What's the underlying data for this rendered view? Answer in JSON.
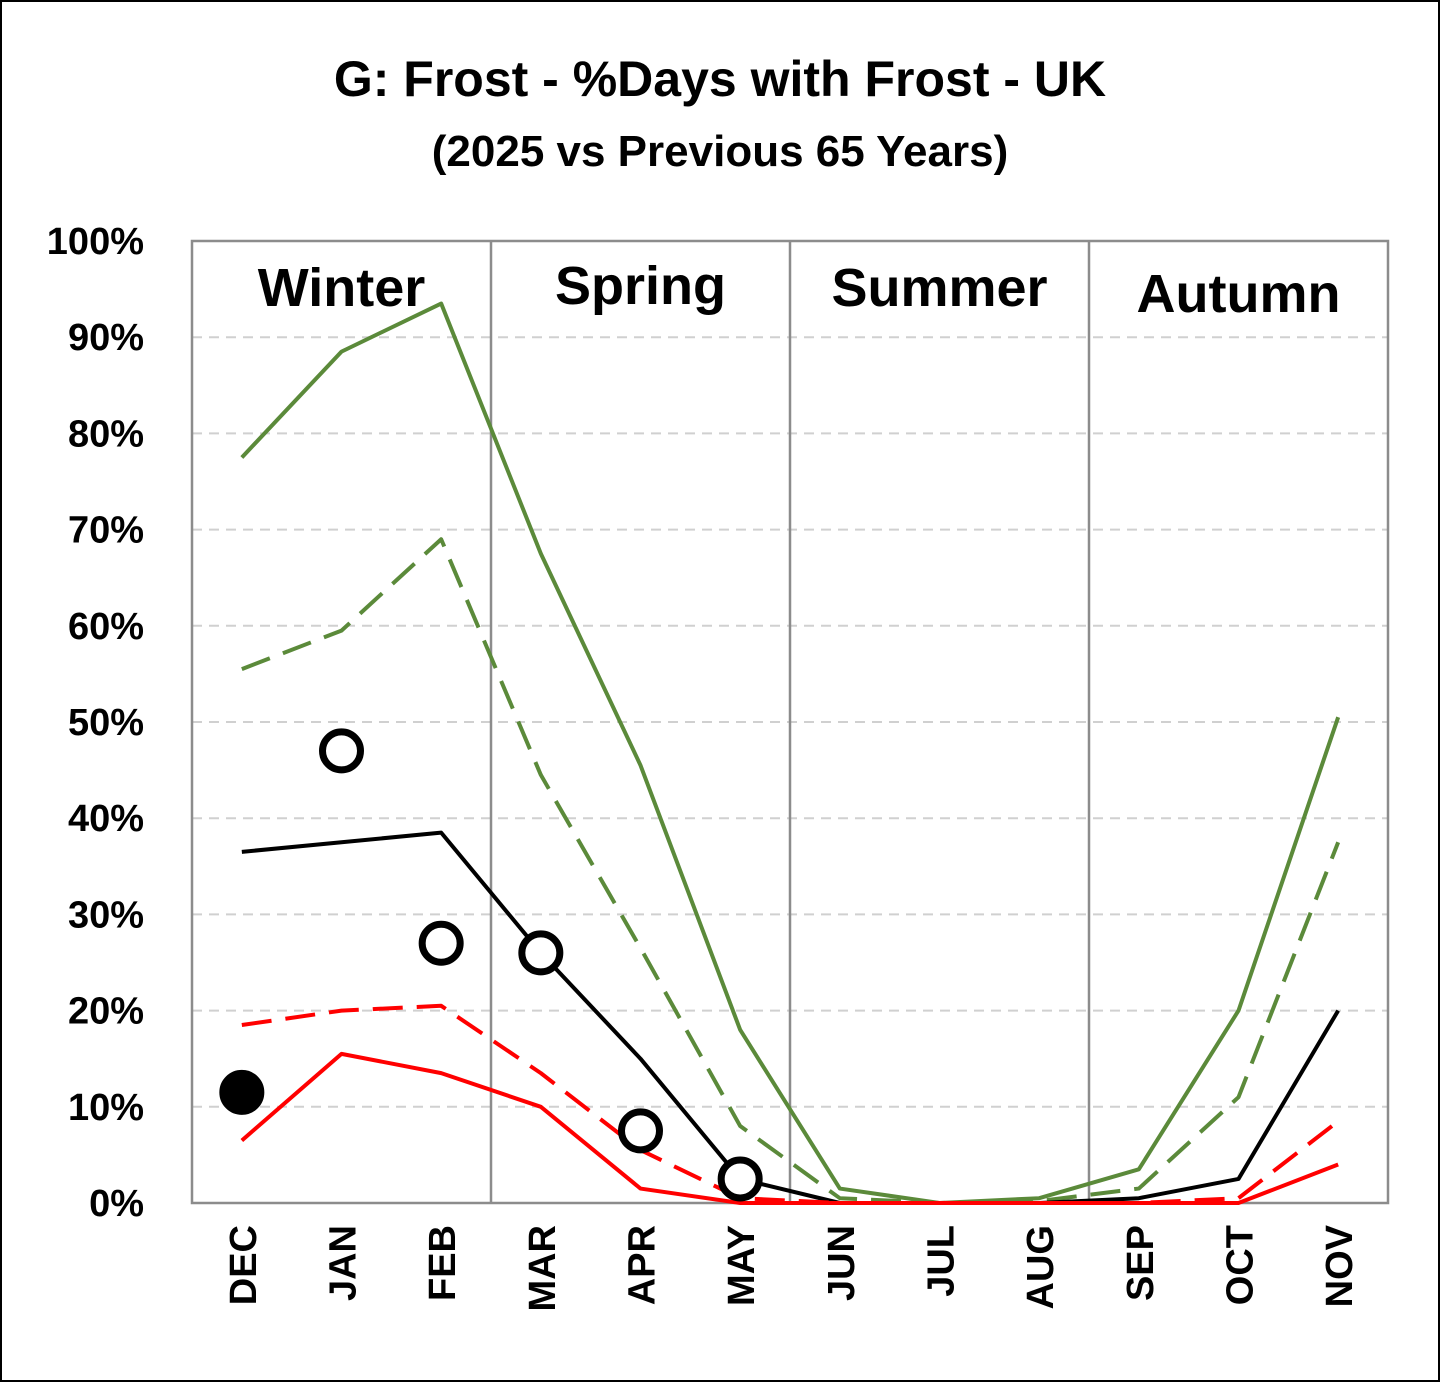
{
  "chart_data": {
    "type": "line",
    "title": "G: Frost - %Days with Frost - UK",
    "subtitle": "(2025 vs Previous 65 Years)",
    "xlabel": "",
    "ylabel": "",
    "categories": [
      "DEC",
      "JAN",
      "FEB",
      "MAR",
      "APR",
      "MAY",
      "JUN",
      "JUL",
      "AUG",
      "SEP",
      "OCT",
      "NOV"
    ],
    "ylim": [
      0,
      100
    ],
    "yticks": [
      "0%",
      "10%",
      "20%",
      "30%",
      "40%",
      "50%",
      "60%",
      "70%",
      "80%",
      "90%",
      "100%"
    ],
    "grid": "horizontal dashed",
    "seasons": [
      "Winter",
      "Spring",
      "Summer",
      "Autumn"
    ],
    "series": [
      {
        "color": "#5b8a3a",
        "dash": false,
        "values": [
          77.5,
          88.5,
          93.5,
          67.5,
          45.5,
          18,
          1.5,
          0,
          0.5,
          3.5,
          20,
          50.5
        ]
      },
      {
        "color": "#5b8a3a",
        "dash": true,
        "values": [
          55.5,
          59.5,
          69,
          44.5,
          26.5,
          8,
          0.5,
          0,
          0.2,
          1.5,
          11,
          37.5
        ]
      },
      {
        "color": "#000000",
        "dash": false,
        "values": [
          36.5,
          37.5,
          38.5,
          26,
          15,
          2.5,
          0,
          0,
          0,
          0.5,
          2.5,
          20
        ]
      },
      {
        "color": "#ff0000",
        "dash": true,
        "values": [
          18.5,
          20,
          20.5,
          13.5,
          5.5,
          0.5,
          0,
          0,
          0,
          0,
          0.5,
          8.5
        ]
      },
      {
        "color": "#ff0000",
        "dash": false,
        "values": [
          6.5,
          15.5,
          13.5,
          10,
          1.5,
          0,
          0,
          0,
          0,
          0,
          0,
          4
        ]
      }
    ],
    "markers_2025": [
      {
        "x": "DEC",
        "y": 11.5,
        "filled": true
      },
      {
        "x": "JAN",
        "y": 47,
        "filled": false
      },
      {
        "x": "FEB",
        "y": 27,
        "filled": false
      },
      {
        "x": "MAR",
        "y": 26,
        "filled": false
      },
      {
        "x": "APR",
        "y": 7.5,
        "filled": false
      },
      {
        "x": "MAY",
        "y": 2.5,
        "filled": false
      }
    ]
  }
}
